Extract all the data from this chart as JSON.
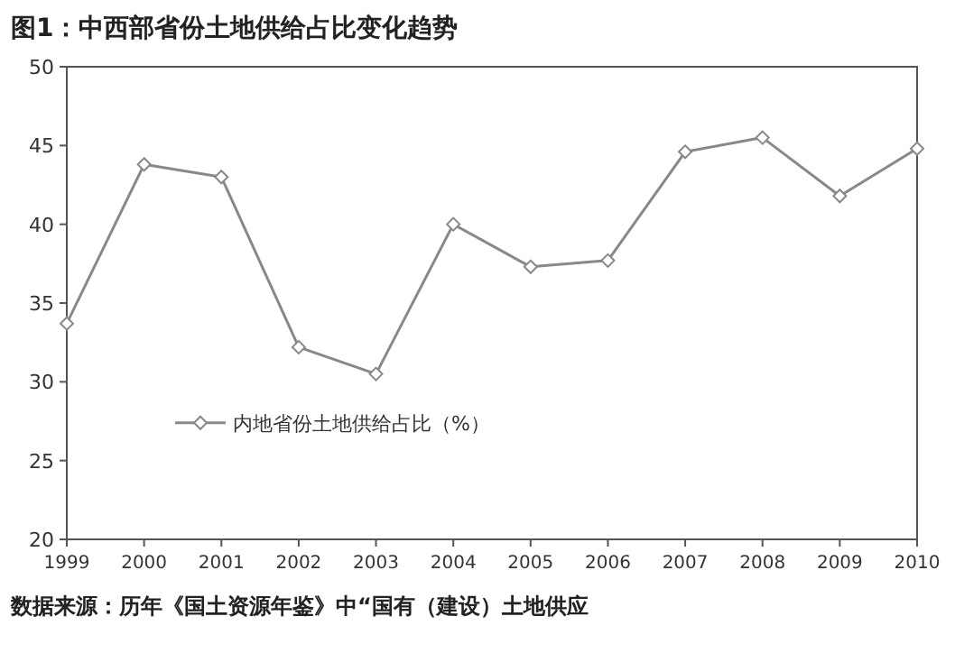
{
  "chart_data": {
    "type": "line",
    "title": "图1：中西部省份土地供给占比变化趋势",
    "categories": [
      "1999",
      "2000",
      "2001",
      "2002",
      "2003",
      "2004",
      "2005",
      "2006",
      "2007",
      "2008",
      "2009",
      "2010"
    ],
    "series": [
      {
        "name": "内地省份土地供给占比（%）",
        "color": "#888888",
        "values": [
          33.7,
          43.8,
          43.0,
          32.2,
          30.5,
          40.0,
          37.3,
          37.7,
          44.6,
          45.5,
          41.8,
          44.8
        ]
      }
    ],
    "ylim": [
      20,
      50
    ],
    "yticks": [
      20,
      25,
      30,
      35,
      40,
      45,
      50
    ],
    "marker": "diamond",
    "legend": "bottom left",
    "grid": false,
    "annotations": [
      "数据来源：历年《国土资源年鉴》中“国有（建设）土地供应"
    ]
  }
}
